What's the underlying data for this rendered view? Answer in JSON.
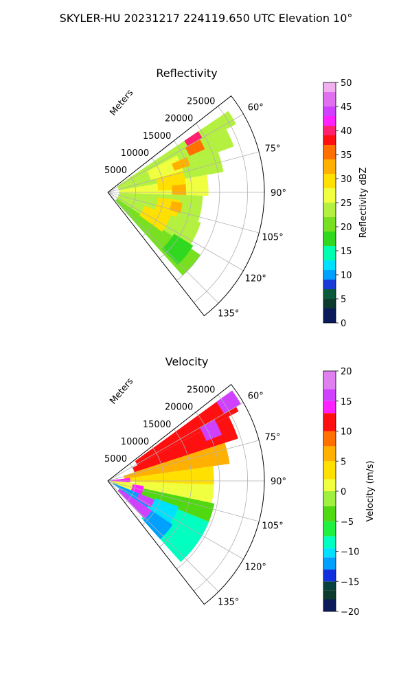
{
  "figure": {
    "suptitle": "SKYLER-HU  20231217  224119.650 UTC Elevation 10°"
  },
  "chart_data": [
    {
      "type": "heatmap",
      "subtype": "polar-sector",
      "title": "Reflectivity",
      "radial_label": "Meters",
      "radial_ticks": [
        5000,
        10000,
        15000,
        20000,
        25000
      ],
      "radial_tick_labels": [
        "5000",
        "10000",
        "15000",
        "20000",
        "25000"
      ],
      "rmax": 28000,
      "theta_range_deg": [
        52,
        142
      ],
      "theta_ticks": [
        60,
        75,
        90,
        105,
        120,
        135
      ],
      "theta_tick_labels": [
        "60°",
        "75°",
        "90°",
        "105°",
        "120°",
        "135°"
      ],
      "grid": true,
      "colorbar": {
        "label": "Reflectivity dBZ",
        "range": [
          0,
          50
        ],
        "ticks": [
          0,
          5,
          10,
          15,
          20,
          25,
          30,
          35,
          40,
          45,
          50
        ],
        "tick_labels": [
          "0",
          "5",
          "10",
          "15",
          "20",
          "25",
          "30",
          "35",
          "40",
          "45",
          "50"
        ],
        "colors": [
          [
            "#0b1a5a",
            0
          ],
          [
            "#0e3a2e",
            3
          ],
          [
            "#0a5a3a",
            5
          ],
          [
            "#1a3ad8",
            7
          ],
          [
            "#00a0ff",
            9
          ],
          [
            "#00e0ff",
            11
          ],
          [
            "#00ffb0",
            13
          ],
          [
            "#30d820",
            16
          ],
          [
            "#78e020",
            19
          ],
          [
            "#b4f040",
            22
          ],
          [
            "#f0ff40",
            25
          ],
          [
            "#ffe000",
            28
          ],
          [
            "#ffb000",
            31
          ],
          [
            "#ff7000",
            34
          ],
          [
            "#ff1010",
            37
          ],
          [
            "#ff2070",
            39
          ],
          [
            "#ff20ff",
            41
          ],
          [
            "#d040ff",
            43
          ],
          [
            "#e070f0",
            45
          ],
          [
            "#f0b0f0",
            48
          ],
          [
            "#fbe6fb",
            50
          ]
        ]
      },
      "cells": [
        {
          "az": [
            56,
            62
          ],
          "r": [
            2000,
            26000
          ],
          "v": 22
        },
        {
          "az": [
            62,
            70
          ],
          "r": [
            2000,
            24000
          ],
          "v": 23
        },
        {
          "az": [
            70,
            80
          ],
          "r": [
            2000,
            21000
          ],
          "v": 24
        },
        {
          "az": [
            80,
            92
          ],
          "r": [
            2000,
            18000
          ],
          "v": 25
        },
        {
          "az": [
            92,
            108
          ],
          "r": [
            2000,
            17000
          ],
          "v": 24
        },
        {
          "az": [
            108,
            124
          ],
          "r": [
            2000,
            17500
          ],
          "v": 22
        },
        {
          "az": [
            124,
            138
          ],
          "r": [
            2000,
            20000
          ],
          "v": 19
        },
        {
          "az": [
            62,
            74
          ],
          "r": [
            8000,
            14000
          ],
          "v": 27
        },
        {
          "az": [
            74,
            88
          ],
          "r": [
            9000,
            14000
          ],
          "v": 29
        },
        {
          "az": [
            96,
            110
          ],
          "r": [
            9000,
            13000
          ],
          "v": 30
        },
        {
          "az": [
            110,
            126
          ],
          "r": [
            7000,
            12000
          ],
          "v": 29
        },
        {
          "az": [
            56,
            60
          ],
          "r": [
            16500,
            19500
          ],
          "v": 39
        },
        {
          "az": [
            60,
            66
          ],
          "r": [
            16000,
            19000
          ],
          "v": 36
        },
        {
          "az": [
            66,
            72
          ],
          "r": [
            12500,
            15500
          ],
          "v": 33
        },
        {
          "az": [
            84,
            92
          ],
          "r": [
            11500,
            14000
          ],
          "v": 32
        },
        {
          "az": [
            98,
            106
          ],
          "r": [
            11500,
            13500
          ],
          "v": 33
        },
        {
          "az": [
            122,
            136
          ],
          "r": [
            14000,
            18000
          ],
          "v": 18
        }
      ]
    },
    {
      "type": "heatmap",
      "subtype": "polar-sector",
      "title": "Velocity",
      "radial_label": "Meters",
      "radial_ticks": [
        5000,
        10000,
        15000,
        20000,
        25000
      ],
      "radial_tick_labels": [
        "5000",
        "10000",
        "15000",
        "20000",
        "25000"
      ],
      "rmax": 28000,
      "theta_range_deg": [
        52,
        142
      ],
      "theta_ticks": [
        60,
        75,
        90,
        105,
        120,
        135
      ],
      "theta_tick_labels": [
        "60°",
        "75°",
        "90°",
        "105°",
        "120°",
        "135°"
      ],
      "grid": true,
      "colorbar": {
        "label": "Velocity (m/s)",
        "range": [
          -20,
          20
        ],
        "ticks": [
          -20,
          -15,
          -10,
          -5,
          0,
          5,
          10,
          15,
          20
        ],
        "tick_labels": [
          "−20",
          "−15",
          "−10",
          "−5",
          "0",
          "5",
          "10",
          "15",
          "20"
        ],
        "colors": [
          [
            "#0b1a5a",
            -20
          ],
          [
            "#0e3a2e",
            -18
          ],
          [
            "#084040",
            -16.5
          ],
          [
            "#1030e0",
            -15
          ],
          [
            "#00a0ff",
            -13
          ],
          [
            "#00e0ff",
            -11
          ],
          [
            "#00ffc0",
            -9.5
          ],
          [
            "#20f040",
            -7.5
          ],
          [
            "#50d810",
            -5
          ],
          [
            "#a0f040",
            -2.5
          ],
          [
            "#f0ff40",
            0
          ],
          [
            "#ffe000",
            2
          ],
          [
            "#ffb000",
            5
          ],
          [
            "#ff7000",
            7.5
          ],
          [
            "#ff1010",
            10
          ],
          [
            "#ff20ff",
            13
          ],
          [
            "#d040ff",
            15
          ],
          [
            "#e080f0",
            17
          ],
          [
            "#fbe6fb",
            20
          ]
        ]
      },
      "cells": [
        {
          "az": [
            54,
            62
          ],
          "r": [
            6000,
            26500
          ],
          "v": 11
        },
        {
          "az": [
            62,
            72
          ],
          "r": [
            5000,
            24500
          ],
          "v": 10
        },
        {
          "az": [
            72,
            82
          ],
          "r": [
            3000,
            22000
          ],
          "v": 6
        },
        {
          "az": [
            82,
            92
          ],
          "r": [
            2000,
            19000
          ],
          "v": 3
        },
        {
          "az": [
            92,
            102
          ],
          "r": [
            5000,
            19000
          ],
          "v": 1
        },
        {
          "az": [
            102,
            112
          ],
          "r": [
            6000,
            19500
          ],
          "v": -5
        },
        {
          "az": [
            112,
            124
          ],
          "r": [
            8000,
            19500
          ],
          "v": -8
        },
        {
          "az": [
            124,
            138
          ],
          "r": [
            9000,
            19500
          ],
          "v": -9
        },
        {
          "az": [
            54,
            60
          ],
          "r": [
            24000,
            27500
          ],
          "v": 16
        },
        {
          "az": [
            60,
            68
          ],
          "r": [
            19000,
            22000
          ],
          "v": 16
        },
        {
          "az": [
            82,
            94
          ],
          "r": [
            500,
            4000
          ],
          "v": 14
        },
        {
          "az": [
            94,
            112
          ],
          "r": [
            500,
            5500
          ],
          "v": 1
        },
        {
          "az": [
            112,
            124
          ],
          "r": [
            1000,
            8500
          ],
          "v": -12
        },
        {
          "az": [
            124,
            136
          ],
          "r": [
            2500,
            9500
          ],
          "v": 15
        },
        {
          "az": [
            112,
            122
          ],
          "r": [
            6000,
            10500
          ],
          "v": 15
        },
        {
          "az": [
            98,
            112
          ],
          "r": [
            4500,
            6500
          ],
          "v": 14
        },
        {
          "az": [
            124,
            138
          ],
          "r": [
            9500,
            14000
          ],
          "v": -13
        },
        {
          "az": [
            110,
            124
          ],
          "r": [
            9000,
            13500
          ],
          "v": -11
        }
      ]
    }
  ]
}
